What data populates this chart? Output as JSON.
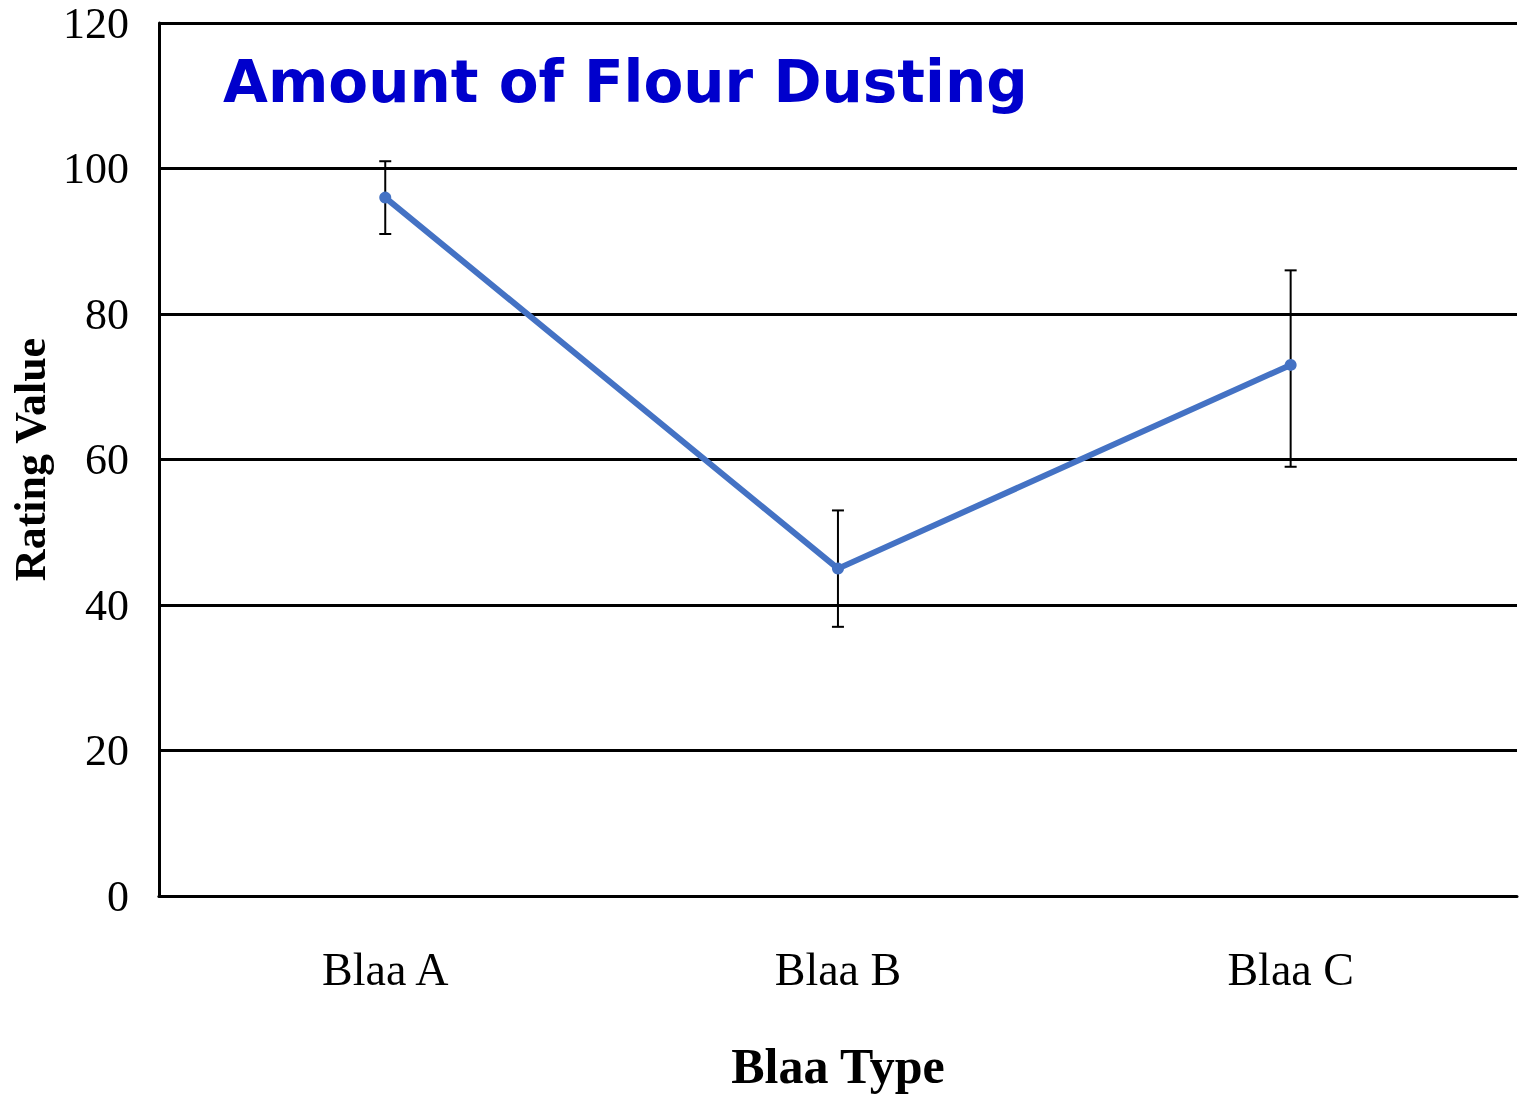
{
  "chart_data": {
    "type": "line",
    "title": "Amount of Flour Dusting",
    "xlabel": "Blaa Type",
    "ylabel": "Rating Value",
    "categories": [
      "Blaa A",
      "Blaa B",
      "Blaa C"
    ],
    "series": [
      {
        "color": "#4472c4",
        "values": [
          96,
          45,
          73
        ],
        "errors": [
          [
            91,
            101
          ],
          [
            37,
            53
          ],
          [
            59,
            86
          ]
        ]
      }
    ],
    "ylim": [
      0,
      120
    ],
    "yticks": [
      0,
      20,
      40,
      60,
      80,
      100,
      120
    ],
    "grid": "y",
    "marker": "circle",
    "line_style": "solid"
  }
}
